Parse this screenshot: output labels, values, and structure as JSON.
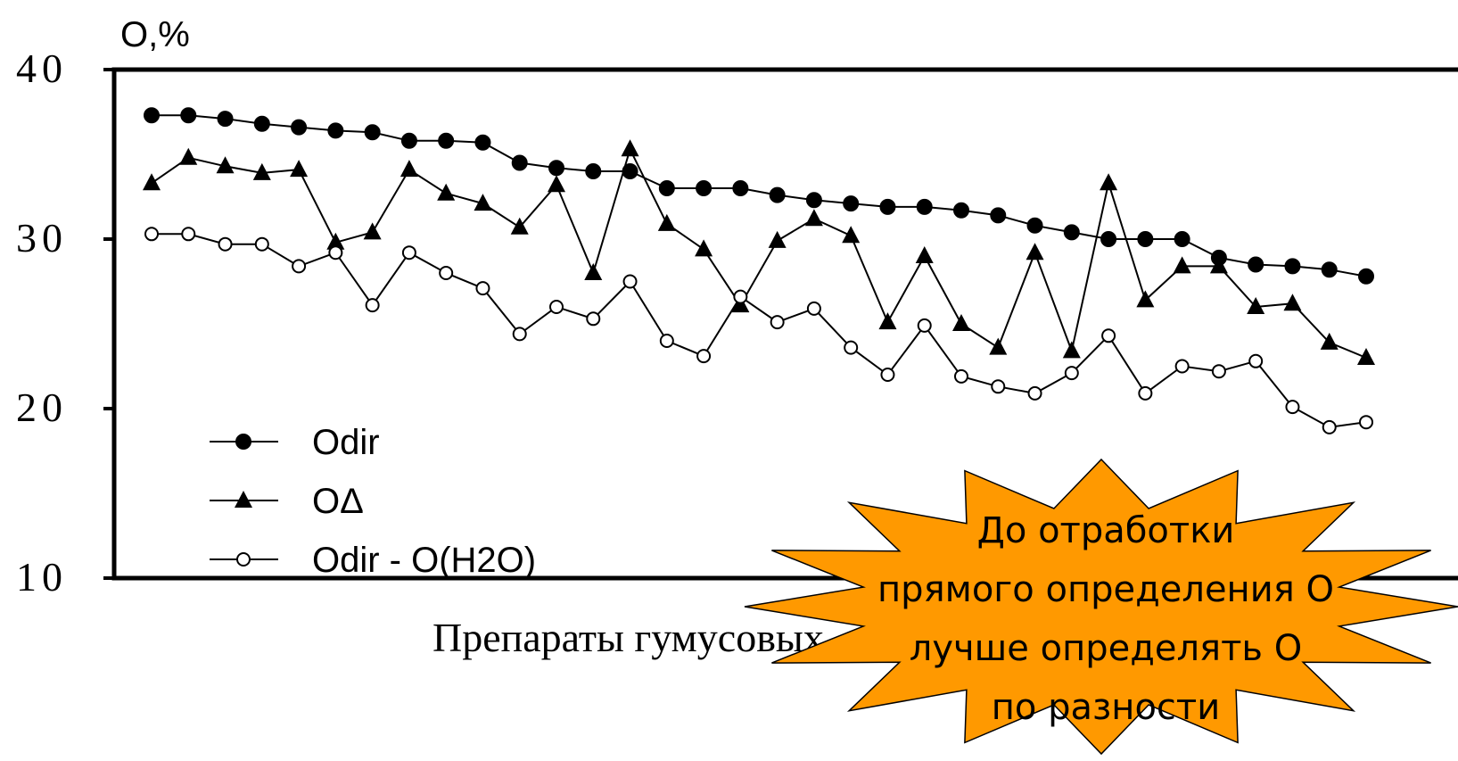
{
  "chart_data": {
    "type": "line",
    "ylabel": "O,%",
    "xlabel": "Препараты гумусовых",
    "ylim": [
      10,
      40
    ],
    "yticks": [
      10,
      20,
      30,
      40
    ],
    "legend": "lower-left",
    "series": [
      {
        "name": "Odir",
        "color": "#000000",
        "marker": "filled-circle",
        "values": [
          37.3,
          37.3,
          37.1,
          36.8,
          36.6,
          36.4,
          36.3,
          35.8,
          35.8,
          35.7,
          34.5,
          34.2,
          34.0,
          34.0,
          33.0,
          33.0,
          33.0,
          32.6,
          32.3,
          32.1,
          31.9,
          31.9,
          31.7,
          31.4,
          30.8,
          30.4,
          30.0,
          30.0,
          30.0,
          28.9,
          28.5,
          28.4,
          28.2,
          27.8
        ]
      },
      {
        "name": "OΔ",
        "color": "#000000",
        "marker": "filled-triangle",
        "values": [
          33.3,
          34.8,
          34.3,
          33.9,
          34.1,
          29.8,
          30.4,
          34.1,
          32.7,
          32.1,
          30.7,
          33.2,
          28.0,
          35.3,
          30.9,
          29.4,
          26.1,
          29.9,
          31.2,
          30.2,
          25.1,
          29.0,
          25.0,
          23.6,
          29.2,
          23.4,
          33.3,
          26.4,
          28.4,
          28.4,
          26.0,
          26.2,
          23.9,
          23.0
        ]
      },
      {
        "name": "Odir - O(H2O)",
        "color": "#000000",
        "marker": "open-circle",
        "values": [
          30.3,
          30.3,
          29.7,
          29.7,
          28.4,
          29.2,
          26.1,
          29.2,
          28.0,
          27.1,
          24.4,
          26.0,
          25.3,
          27.5,
          24.0,
          23.1,
          26.6,
          25.1,
          25.9,
          23.6,
          22.0,
          24.9,
          21.9,
          21.3,
          20.9,
          22.1,
          24.3,
          20.9,
          22.5,
          22.2,
          22.8,
          20.1,
          18.9,
          19.2
        ]
      }
    ],
    "annotation": [
      "До отработки",
      "прямого определения О",
      "лучше определять О",
      "по разности"
    ],
    "annotation_color": "#ff9900"
  }
}
